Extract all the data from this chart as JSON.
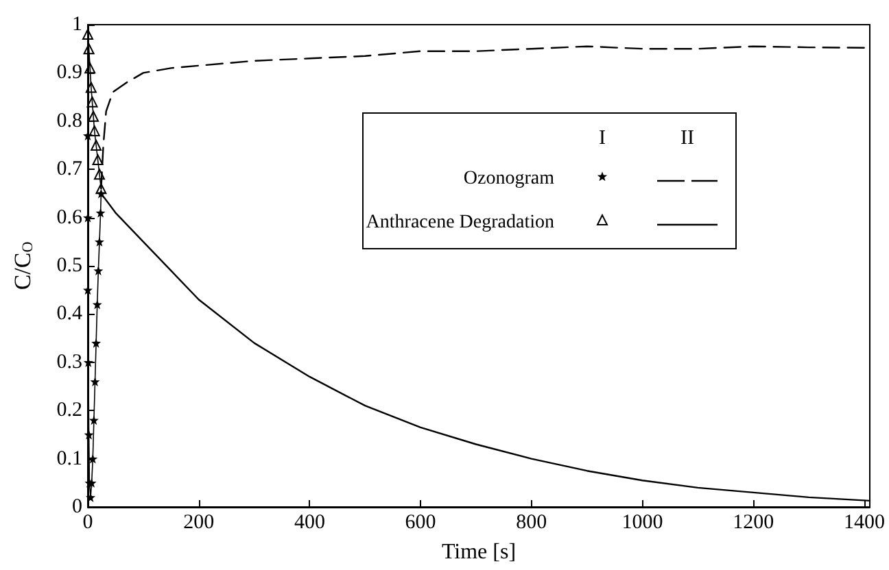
{
  "chart_data": {
    "type": "line",
    "xlabel": "Time [s]",
    "ylabel": "C/C$_{O}$",
    "xlim": [
      0,
      1410
    ],
    "ylim": [
      0,
      1
    ],
    "xticks": [
      0,
      200,
      400,
      600,
      800,
      1000,
      1200,
      1400
    ],
    "yticks": [
      0,
      0.1,
      0.2,
      0.3,
      0.4,
      0.5,
      0.6,
      0.7,
      0.8,
      0.9,
      1
    ],
    "grid": false,
    "legend": "right",
    "annotations": [
      "I",
      "II"
    ],
    "series": [
      {
        "name": "Ozonogram",
        "color": "#000000",
        "marker": "star",
        "line_style": "solid",
        "x": [
          0,
          0,
          0,
          1,
          2,
          3,
          5,
          7,
          9,
          11,
          13,
          15,
          17,
          19,
          21,
          23,
          24
        ],
        "values": [
          0.77,
          0.6,
          0.45,
          0.3,
          0.15,
          0.05,
          0.02,
          0.05,
          0.1,
          0.18,
          0.26,
          0.34,
          0.42,
          0.49,
          0.55,
          0.61,
          0.65
        ]
      },
      {
        "name": "Anthracene Degradation",
        "color": "#000000",
        "marker": "triangle",
        "line_style": "solid",
        "x": [
          0,
          2,
          4,
          6,
          8,
          10,
          12,
          15,
          18,
          21,
          24
        ],
        "values": [
          0.98,
          0.95,
          0.91,
          0.87,
          0.84,
          0.81,
          0.78,
          0.75,
          0.72,
          0.69,
          0.66
        ]
      },
      {
        "color": "#000000",
        "marker": "none",
        "line_style": "dashed",
        "x": [
          24,
          28,
          33,
          45,
          70,
          100,
          150,
          200,
          300,
          400,
          500,
          600,
          700,
          800,
          900,
          1000,
          1100,
          1200,
          1300,
          1410
        ],
        "values": [
          0.66,
          0.75,
          0.82,
          0.86,
          0.88,
          0.9,
          0.91,
          0.915,
          0.925,
          0.93,
          0.935,
          0.945,
          0.945,
          0.95,
          0.955,
          0.95,
          0.95,
          0.955,
          0.953,
          0.952
        ]
      },
      {
        "color": "#000000",
        "marker": "none",
        "line_style": "solid",
        "x": [
          24,
          50,
          100,
          200,
          300,
          400,
          500,
          600,
          700,
          800,
          900,
          1000,
          1100,
          1200,
          1300,
          1410
        ],
        "values": [
          0.65,
          0.61,
          0.55,
          0.43,
          0.34,
          0.27,
          0.21,
          0.165,
          0.13,
          0.1,
          0.075,
          0.055,
          0.04,
          0.03,
          0.02,
          0.013
        ]
      }
    ]
  }
}
